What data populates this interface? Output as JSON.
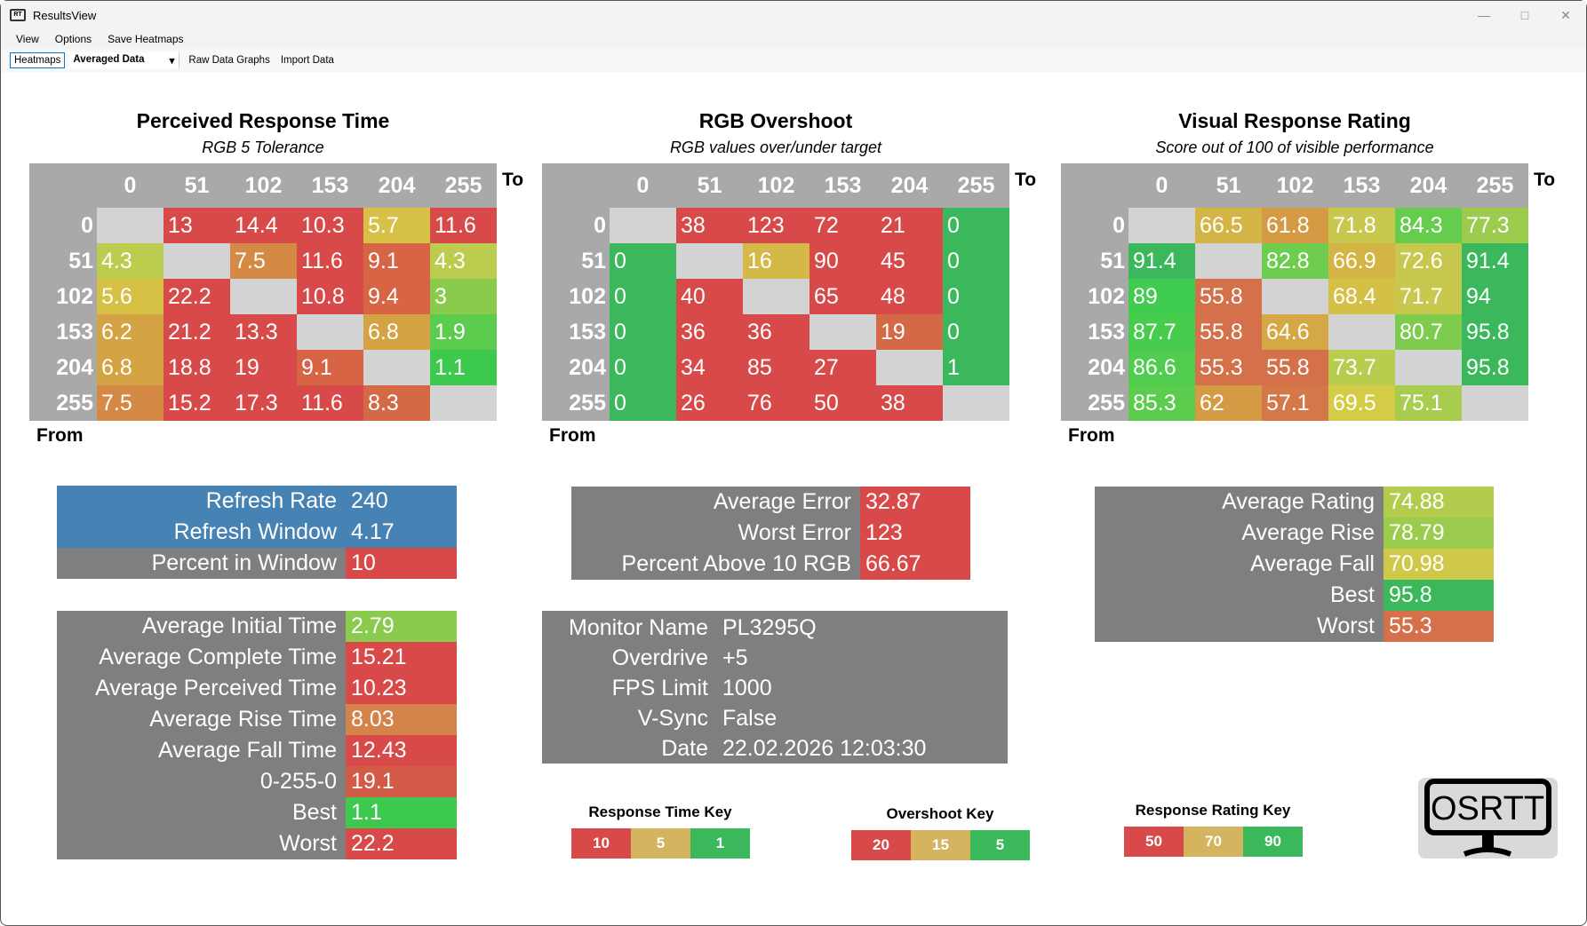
{
  "window": {
    "title": "ResultsView",
    "icon": "RT"
  },
  "menu": [
    "View",
    "Options",
    "Save Heatmaps"
  ],
  "toolbar": {
    "heatmaps": "Heatmaps",
    "select_value": "Averaged Data",
    "raw": "Raw Data Graphs",
    "import": "Import Data"
  },
  "colors": {
    "gray_empty": "#d3d3d3",
    "header": "#a9a9a9",
    "panel": "#7f7f7f",
    "blue": "#4682b4",
    "red": "#d84a49",
    "amber": "#d4b45e",
    "green": "#3bb85c"
  },
  "heatmaps": [
    {
      "title": "Perceived Response Time",
      "subtitle": "RGB 5 Tolerance",
      "to": "To",
      "from": "From",
      "cols": [
        "0",
        "51",
        "102",
        "153",
        "204",
        "255"
      ],
      "rows": [
        "0",
        "51",
        "102",
        "153",
        "204",
        "255"
      ],
      "values": [
        [
          null,
          "13",
          "14.4",
          "10.3",
          "5.7",
          "11.6"
        ],
        [
          "4.3",
          null,
          "7.5",
          "11.6",
          "9.1",
          "4.3"
        ],
        [
          "5.6",
          "22.2",
          null,
          "10.8",
          "9.4",
          "3"
        ],
        [
          "6.2",
          "21.2",
          "13.3",
          null,
          "6.8",
          "1.9"
        ],
        [
          "6.8",
          "18.8",
          "19",
          "9.1",
          null,
          "1.1"
        ],
        [
          "7.5",
          "15.2",
          "17.3",
          "11.6",
          "8.3",
          null
        ]
      ],
      "colors": [
        [
          null,
          "#d84a49",
          "#d84a49",
          "#d84a49",
          "#d6c046",
          "#d84a49"
        ],
        [
          "#bccc4e",
          null,
          "#d48a44",
          "#d84a49",
          "#d66445",
          "#bccc4e"
        ],
        [
          "#d6c046",
          "#d84a49",
          null,
          "#d84a49",
          "#d66445",
          "#8acb4e"
        ],
        [
          "#d4a444",
          "#d84a49",
          "#d84a49",
          null,
          "#d4a444",
          "#5ccc4e"
        ],
        [
          "#d4a444",
          "#d84a49",
          "#d84a49",
          "#d66445",
          null,
          "#3cc94e"
        ],
        [
          "#d48a44",
          "#d84a49",
          "#d84a49",
          "#d84a49",
          "#d46a45",
          null
        ]
      ]
    },
    {
      "title": "RGB Overshoot",
      "subtitle": "RGB values over/under target",
      "to": "To",
      "from": "From",
      "cols": [
        "0",
        "51",
        "102",
        "153",
        "204",
        "255"
      ],
      "rows": [
        "0",
        "51",
        "102",
        "153",
        "204",
        "255"
      ],
      "values": [
        [
          null,
          "38",
          "123",
          "72",
          "21",
          "0"
        ],
        [
          "0",
          null,
          "16",
          "90",
          "45",
          "0"
        ],
        [
          "0",
          "40",
          null,
          "65",
          "48",
          "0"
        ],
        [
          "0",
          "36",
          "36",
          null,
          "19",
          "0"
        ],
        [
          "0",
          "34",
          "85",
          "27",
          null,
          "1"
        ],
        [
          "0",
          "26",
          "76",
          "50",
          "38",
          null
        ]
      ],
      "colors": [
        [
          null,
          "#d84a49",
          "#d84a49",
          "#d84a49",
          "#d84a49",
          "#3bb85c"
        ],
        [
          "#3bb85c",
          null,
          "#d4b848",
          "#d84a49",
          "#d84a49",
          "#3bb85c"
        ],
        [
          "#3bb85c",
          "#d84a49",
          null,
          "#d84a49",
          "#d84a49",
          "#3bb85c"
        ],
        [
          "#3bb85c",
          "#d84a49",
          "#d84a49",
          null,
          "#d46a45",
          "#3bb85c"
        ],
        [
          "#3bb85c",
          "#d84a49",
          "#d84a49",
          "#d84a49",
          null,
          "#3bb85c"
        ],
        [
          "#3bb85c",
          "#d84a49",
          "#d84a49",
          "#d84a49",
          "#d84a49",
          null
        ]
      ]
    },
    {
      "title": "Visual Response Rating",
      "subtitle": "Score out of 100 of visible performance",
      "to": "To",
      "from": "From",
      "cols": [
        "0",
        "51",
        "102",
        "153",
        "204",
        "255"
      ],
      "rows": [
        "0",
        "51",
        "102",
        "153",
        "204",
        "255"
      ],
      "values": [
        [
          null,
          "66.5",
          "61.8",
          "71.8",
          "84.3",
          "77.3"
        ],
        [
          "91.4",
          null,
          "82.8",
          "66.9",
          "72.6",
          "91.4"
        ],
        [
          "89",
          "55.8",
          null,
          "68.4",
          "71.7",
          "94"
        ],
        [
          "87.7",
          "55.8",
          "64.6",
          null,
          "80.7",
          "95.8"
        ],
        [
          "86.6",
          "55.3",
          "55.8",
          "73.7",
          null,
          "95.8"
        ],
        [
          "85.3",
          "62",
          "57.1",
          "69.5",
          "75.1",
          null
        ]
      ],
      "colors": [
        [
          null,
          "#d4b444",
          "#d49a44",
          "#c8c84e",
          "#66cc4e",
          "#9ccc4e"
        ],
        [
          "#3bb85c",
          null,
          "#6ecc4e",
          "#d4b444",
          "#c8c84e",
          "#3bb85c"
        ],
        [
          "#40cc4e",
          "#d4704a",
          null,
          "#d4c046",
          "#c8c84e",
          "#3bb85c"
        ],
        [
          "#48cc4e",
          "#d4704a",
          "#d4a844",
          null,
          "#7ecc4e",
          "#3bb85c"
        ],
        [
          "#50cc4e",
          "#d4704a",
          "#d4704a",
          "#b8cc4e",
          null,
          "#3bb85c"
        ],
        [
          "#5ccc4e",
          "#d49a44",
          "#d4784a",
          "#d4cc46",
          "#a8cc4e",
          null
        ]
      ]
    }
  ],
  "panels": {
    "refresh": [
      {
        "label": "Refresh Rate",
        "value": "240",
        "lbg": "#4682b4",
        "vbg": "#4682b4"
      },
      {
        "label": "Refresh Window",
        "value": "4.17",
        "lbg": "#4682b4",
        "vbg": "#4682b4"
      },
      {
        "label": "Percent in Window",
        "value": "10",
        "lbg": "#7f7f7f",
        "vbg": "#d84a49"
      }
    ],
    "times": [
      {
        "label": "Average Initial Time",
        "value": "2.79",
        "vbg": "#8acb4e"
      },
      {
        "label": "Average Complete Time",
        "value": "15.21",
        "vbg": "#d84a49"
      },
      {
        "label": "Average Perceived Time",
        "value": "10.23",
        "vbg": "#d84a49"
      },
      {
        "label": "Average Rise Time",
        "value": "8.03",
        "vbg": "#d4844a"
      },
      {
        "label": "Average Fall Time",
        "value": "12.43",
        "vbg": "#d84a49"
      },
      {
        "label": "0-255-0",
        "value": "19.1",
        "vbg": "#d45a48"
      },
      {
        "label": "Best",
        "value": "1.1",
        "vbg": "#3cc94e"
      },
      {
        "label": "Worst",
        "value": "22.2",
        "vbg": "#d84a49"
      }
    ],
    "error": [
      {
        "label": "Average Error",
        "value": "32.87",
        "vbg": "#d84a49"
      },
      {
        "label": "Worst Error",
        "value": "123",
        "vbg": "#d84a49"
      },
      {
        "label": "Percent Above 10 RGB",
        "value": "66.67",
        "vbg": "#d84a49"
      }
    ],
    "monitor": [
      {
        "label": "Monitor Name",
        "value": "PL3295Q"
      },
      {
        "label": "Overdrive",
        "value": "+5"
      },
      {
        "label": "FPS Limit",
        "value": "1000"
      },
      {
        "label": "V-Sync",
        "value": "False"
      },
      {
        "label": "Date",
        "value": "22.02.2026 12:03:30"
      }
    ],
    "rating": [
      {
        "label": "Average Rating",
        "value": "74.88",
        "vbg": "#b4cc4e"
      },
      {
        "label": "Average Rise",
        "value": "78.79",
        "vbg": "#9ccc4e"
      },
      {
        "label": "Average Fall",
        "value": "70.98",
        "vbg": "#d0c84a"
      },
      {
        "label": "Best",
        "value": "95.8",
        "vbg": "#3bb85c"
      },
      {
        "label": "Worst",
        "value": "55.3",
        "vbg": "#d4704a"
      }
    ]
  },
  "keys": [
    {
      "title": "Response Time Key",
      "items": [
        {
          "v": "10",
          "c": "#d84a49"
        },
        {
          "v": "5",
          "c": "#d4b45e"
        },
        {
          "v": "1",
          "c": "#3bb85c"
        }
      ]
    },
    {
      "title": "Overshoot Key",
      "items": [
        {
          "v": "20",
          "c": "#d84a49"
        },
        {
          "v": "15",
          "c": "#d4b45e"
        },
        {
          "v": "5",
          "c": "#3bb85c"
        }
      ]
    },
    {
      "title": "Response Rating Key",
      "items": [
        {
          "v": "50",
          "c": "#d84a49"
        },
        {
          "v": "70",
          "c": "#d4b45e"
        },
        {
          "v": "90",
          "c": "#3bb85c"
        }
      ]
    }
  ],
  "logo": "OSRTT"
}
